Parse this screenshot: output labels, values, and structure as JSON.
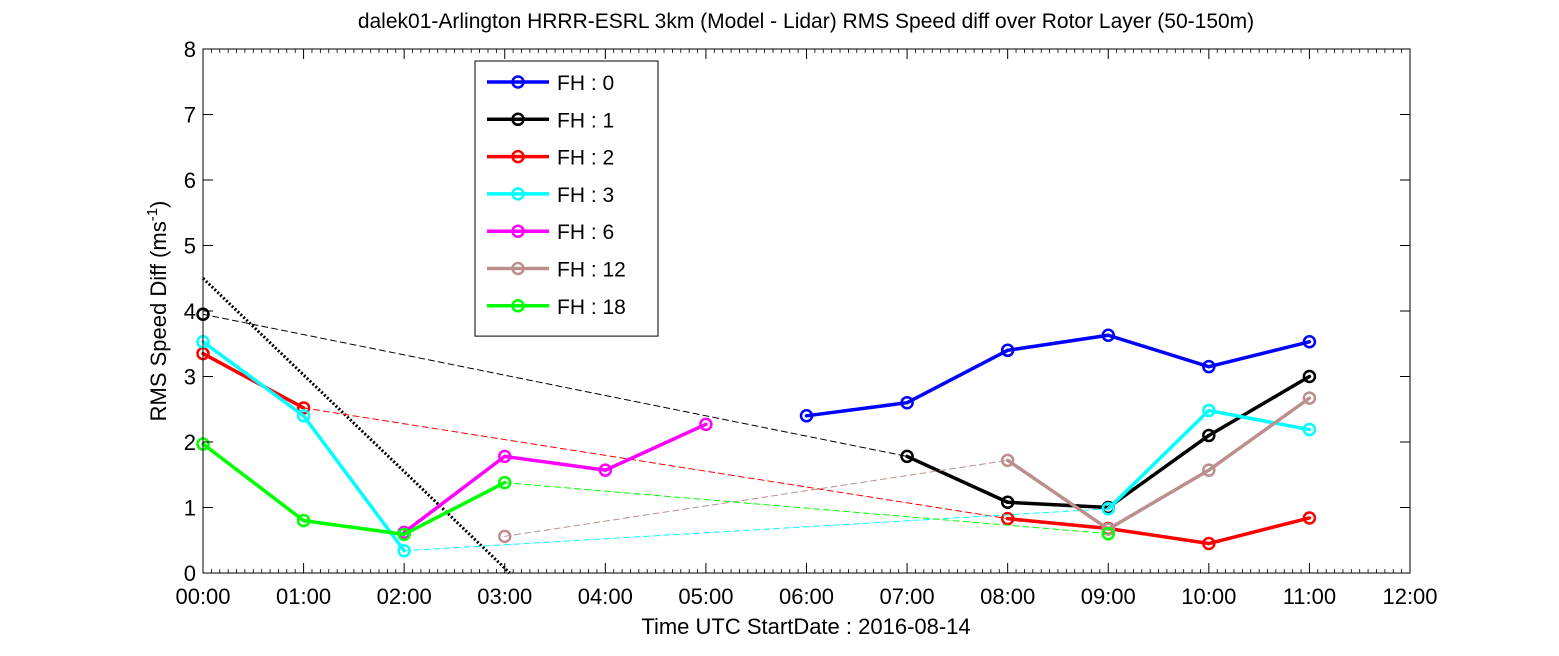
{
  "chart_data": {
    "type": "line",
    "title": "dalek01-Arlington HRRR-ESRL 3km (Model - Lidar) RMS Speed diff over Rotor Layer (50-150m)",
    "xlabel": "Time UTC    StartDate : 2016-08-14",
    "ylabel": {
      "text": "RMS Speed Diff (ms",
      "superscript": "-1",
      "close": ")"
    },
    "x_unit": "hours UTC",
    "xlim": [
      0,
      12
    ],
    "ylim": [
      0,
      8
    ],
    "x_tick_labels": [
      "00:00",
      "01:00",
      "02:00",
      "03:00",
      "04:00",
      "05:00",
      "06:00",
      "07:00",
      "08:00",
      "09:00",
      "10:00",
      "11:00",
      "12:00"
    ],
    "y_tick_labels": [
      "0",
      "1",
      "2",
      "3",
      "4",
      "5",
      "6",
      "7",
      "8"
    ],
    "grid": false,
    "legend_position": "top-left",
    "series": [
      {
        "name": "FH : 0",
        "color": "#0000ff",
        "x": [
          6,
          7,
          8,
          9,
          10,
          11
        ],
        "y": [
          2.4,
          2.6,
          3.4,
          3.63,
          3.15,
          3.53
        ]
      },
      {
        "name": "FH : 1",
        "color": "#000000",
        "x": [
          0,
          7,
          8,
          9,
          10,
          11
        ],
        "y": [
          3.95,
          1.78,
          1.08,
          1.0,
          2.1,
          3.0
        ]
      },
      {
        "name": "FH : 2",
        "color": "#ff0000",
        "x": [
          0,
          1,
          8,
          9,
          10,
          11
        ],
        "y": [
          3.35,
          2.52,
          0.83,
          0.68,
          0.45,
          0.84
        ]
      },
      {
        "name": "FH : 3",
        "color": "#00ffff",
        "x": [
          0,
          1,
          2,
          9,
          10,
          11
        ],
        "y": [
          3.53,
          2.4,
          0.34,
          0.98,
          2.48,
          2.19
        ]
      },
      {
        "name": "FH : 6",
        "color": "#ff00ff",
        "x": [
          2,
          3,
          4,
          5
        ],
        "y": [
          0.62,
          1.78,
          1.57,
          2.27
        ]
      },
      {
        "name": "FH : 12",
        "color": "#bc8f8f",
        "x": [
          3,
          8,
          9,
          10,
          11
        ],
        "y": [
          0.56,
          1.72,
          0.67,
          1.57,
          2.67
        ]
      },
      {
        "name": "FH : 18",
        "color": "#00ff00",
        "x": [
          0,
          1,
          2,
          3,
          9
        ],
        "y": [
          1.97,
          0.8,
          0.59,
          1.38,
          0.6
        ]
      }
    ],
    "trend_lines": [
      {
        "color": "#000000",
        "style": "dotted-thick",
        "x": [
          0,
          3.05
        ],
        "y": [
          4.5,
          0
        ]
      }
    ]
  }
}
